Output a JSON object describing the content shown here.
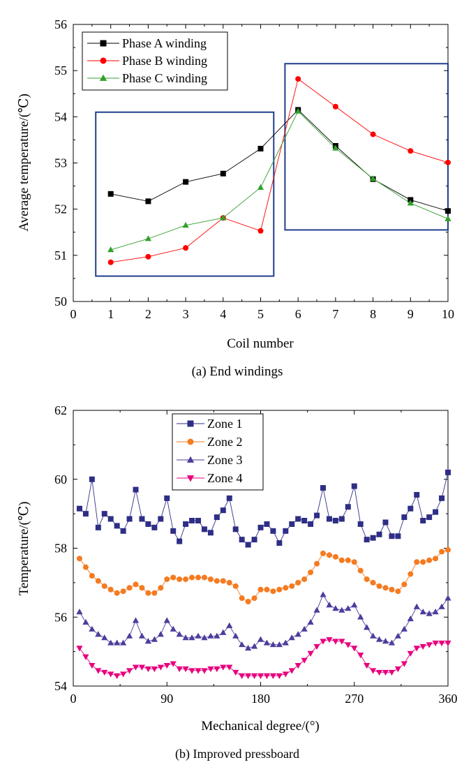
{
  "chart_data": [
    {
      "type": "line",
      "caption": "(a) End windings",
      "xlabel": "Coil number",
      "ylabel": "Average temperature/(℃)",
      "xlim": [
        0,
        10
      ],
      "ylim": [
        50,
        56
      ],
      "xticks": [
        "0",
        "1",
        "2",
        "3",
        "4",
        "5",
        "6",
        "7",
        "8",
        "9",
        "10"
      ],
      "yticks": [
        "50",
        "51",
        "52",
        "53",
        "54",
        "55",
        "56"
      ],
      "x": [
        1,
        2,
        3,
        4,
        5,
        6,
        7,
        8,
        9,
        10
      ],
      "legend_position": "top-left",
      "grid": false,
      "highlight_boxes": [
        {
          "x_range": [
            0.6,
            5.35
          ],
          "y_range": [
            50.55,
            54.1
          ]
        },
        {
          "x_range": [
            5.65,
            10.0
          ],
          "y_range": [
            51.55,
            55.15
          ]
        }
      ],
      "series": [
        {
          "name": "Phase A winding",
          "color": "#000000",
          "marker": "square",
          "values": [
            52.33,
            52.17,
            52.59,
            52.77,
            53.31,
            54.15,
            53.37,
            52.65,
            52.2,
            51.96
          ]
        },
        {
          "name": "Phase B winding",
          "color": "#ff0000",
          "marker": "circle",
          "values": [
            50.85,
            50.97,
            51.16,
            51.81,
            51.53,
            54.82,
            54.22,
            53.62,
            53.26,
            53.01
          ]
        },
        {
          "name": "Phase C winding",
          "color": "#33a02c",
          "marker": "triangle-up",
          "values": [
            51.12,
            51.36,
            51.65,
            51.81,
            52.47,
            54.12,
            53.32,
            52.66,
            52.13,
            51.79
          ]
        }
      ]
    },
    {
      "type": "line",
      "caption": "(b) Improved pressboard",
      "xlabel": "Mechanical degree/(°)",
      "ylabel": "Temperature/(℃)",
      "xlim": [
        0,
        360
      ],
      "ylim": [
        54,
        62
      ],
      "xticks": [
        "0",
        "90",
        "180",
        "270",
        "360"
      ],
      "yticks": [
        "54",
        "56",
        "58",
        "60",
        "62"
      ],
      "x": [
        6,
        12,
        18,
        24,
        30,
        36,
        42,
        48,
        54,
        60,
        66,
        72,
        78,
        84,
        90,
        96,
        102,
        108,
        114,
        120,
        126,
        132,
        138,
        144,
        150,
        156,
        162,
        168,
        174,
        180,
        186,
        192,
        198,
        204,
        210,
        216,
        222,
        228,
        234,
        240,
        246,
        252,
        258,
        264,
        270,
        276,
        282,
        288,
        294,
        300,
        306,
        312,
        318,
        324,
        330,
        336,
        342,
        348,
        354,
        360
      ],
      "legend_position": "top-left",
      "grid": false,
      "series": [
        {
          "name": "Zone 1",
          "color": "#2e2e86",
          "marker": "square",
          "values": [
            59.15,
            59.0,
            60.0,
            58.6,
            59.0,
            58.85,
            58.65,
            58.5,
            58.85,
            59.7,
            58.85,
            58.7,
            58.6,
            58.85,
            59.45,
            58.5,
            58.2,
            58.7,
            58.8,
            58.8,
            58.55,
            58.45,
            58.9,
            59.1,
            59.45,
            58.55,
            58.25,
            58.1,
            58.25,
            58.6,
            58.7,
            58.5,
            58.15,
            58.5,
            58.7,
            58.85,
            58.8,
            58.7,
            58.95,
            59.75,
            58.85,
            58.8,
            58.85,
            59.2,
            59.8,
            58.7,
            58.25,
            58.3,
            58.4,
            58.75,
            58.35,
            58.35,
            58.9,
            59.15,
            59.55,
            58.8,
            58.9,
            59.05,
            59.45,
            60.2
          ]
        },
        {
          "name": "Zone 2",
          "color": "#f47b20",
          "marker": "circle",
          "values": [
            57.7,
            57.45,
            57.2,
            57.05,
            56.9,
            56.8,
            56.7,
            56.75,
            56.85,
            56.95,
            56.85,
            56.7,
            56.7,
            56.85,
            57.1,
            57.15,
            57.1,
            57.1,
            57.15,
            57.15,
            57.15,
            57.1,
            57.05,
            57.05,
            57.0,
            56.9,
            56.55,
            56.45,
            56.55,
            56.8,
            56.8,
            56.75,
            56.8,
            56.85,
            56.9,
            57.0,
            57.1,
            57.3,
            57.55,
            57.85,
            57.8,
            57.75,
            57.65,
            57.65,
            57.6,
            57.35,
            57.1,
            57.0,
            56.9,
            56.85,
            56.8,
            56.75,
            56.95,
            57.25,
            57.6,
            57.6,
            57.65,
            57.7,
            57.9,
            57.95
          ]
        },
        {
          "name": "Zone 3",
          "color": "#4b3e9c",
          "marker": "triangle-up",
          "values": [
            56.15,
            55.85,
            55.65,
            55.5,
            55.4,
            55.25,
            55.25,
            55.25,
            55.45,
            55.9,
            55.45,
            55.3,
            55.35,
            55.5,
            55.9,
            55.65,
            55.5,
            55.4,
            55.4,
            55.45,
            55.4,
            55.45,
            55.45,
            55.55,
            55.75,
            55.45,
            55.2,
            55.1,
            55.15,
            55.35,
            55.25,
            55.2,
            55.2,
            55.25,
            55.4,
            55.5,
            55.65,
            55.85,
            56.2,
            56.65,
            56.35,
            56.25,
            56.2,
            56.25,
            56.35,
            56.0,
            55.7,
            55.45,
            55.35,
            55.3,
            55.25,
            55.45,
            55.65,
            55.95,
            56.3,
            56.15,
            56.1,
            56.15,
            56.3,
            56.55
          ]
        },
        {
          "name": "Zone 4",
          "color": "#e6007e",
          "marker": "triangle-down",
          "values": [
            55.1,
            54.85,
            54.6,
            54.45,
            54.4,
            54.35,
            54.3,
            54.35,
            54.45,
            54.55,
            54.55,
            54.5,
            54.5,
            54.55,
            54.6,
            54.65,
            54.5,
            54.5,
            54.45,
            54.45,
            54.45,
            54.5,
            54.5,
            54.55,
            54.55,
            54.4,
            54.3,
            54.3,
            54.3,
            54.3,
            54.3,
            54.3,
            54.3,
            54.35,
            54.45,
            54.6,
            54.75,
            54.95,
            55.15,
            55.3,
            55.35,
            55.3,
            55.3,
            55.2,
            55.1,
            54.9,
            54.6,
            54.45,
            54.4,
            54.4,
            54.4,
            54.5,
            54.65,
            54.95,
            55.1,
            55.15,
            55.2,
            55.25,
            55.25,
            55.25
          ]
        }
      ]
    }
  ]
}
